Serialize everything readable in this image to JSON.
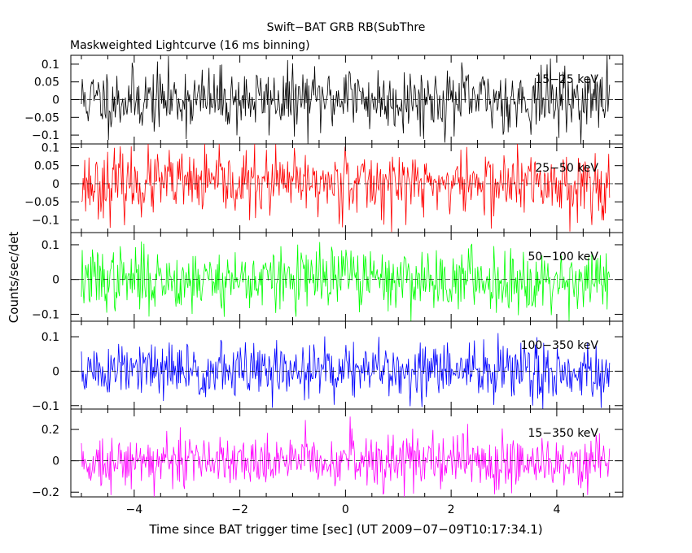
{
  "chart_data": {
    "type": "line",
    "title": "Swift−BAT GRB RB(SubThre",
    "subtitle": "Maskweighted Lightcurve (16 ms binning)",
    "xlabel": "Time since BAT trigger time [sec] (UT 2009−07−09T10:17:34.1)",
    "ylabel": "Counts/sec/det",
    "xlim": [
      -5.2,
      5.25
    ],
    "x_ticks": [
      -4,
      -2,
      0,
      2,
      4
    ],
    "x_tick_labels": [
      "−4",
      "−2",
      "0",
      "2",
      "4"
    ],
    "x_range": [
      -5.0,
      5.0
    ],
    "bin_size": 0.016,
    "panels": [
      {
        "name": "15−25 keV",
        "color": "#000000",
        "ylim": [
          -0.125,
          0.125
        ],
        "y_ticks": [
          -0.1,
          -0.05,
          0,
          0.05,
          0.1
        ],
        "y_tick_labels": [
          "−0.1",
          "−0.05",
          "0",
          "0.05",
          "0.1"
        ],
        "noise_sigma": 0.045,
        "seed": 11
      },
      {
        "name": "25−50 keV",
        "color": "#ff0000",
        "ylim": [
          -0.135,
          0.11
        ],
        "y_ticks": [
          -0.1,
          -0.05,
          0,
          0.05,
          0.1
        ],
        "y_tick_labels": [
          "−0.1",
          "−0.05",
          "0",
          "0.05",
          "0.1"
        ],
        "noise_sigma": 0.045,
        "seed": 23
      },
      {
        "name": "50−100 keV",
        "color": "#00ff00",
        "ylim": [
          -0.12,
          0.135
        ],
        "y_ticks": [
          -0.1,
          0,
          0.1
        ],
        "y_tick_labels": [
          "−0.1",
          "0",
          "0.1"
        ],
        "noise_sigma": 0.045,
        "seed": 37
      },
      {
        "name": "100−350 keV",
        "color": "#0000ff",
        "ylim": [
          -0.11,
          0.145
        ],
        "y_ticks": [
          -0.1,
          0,
          0.1
        ],
        "y_tick_labels": [
          "−0.1",
          "0",
          "0.1"
        ],
        "noise_sigma": 0.042,
        "seed": 51
      },
      {
        "name": "15−350 keV",
        "color": "#ff00ff",
        "ylim": [
          -0.23,
          0.33
        ],
        "y_ticks": [
          -0.2,
          0,
          0.2
        ],
        "y_tick_labels": [
          "−0.2",
          "0",
          "0.2"
        ],
        "noise_sigma": 0.085,
        "seed": 73
      }
    ],
    "zero_line": "dashed",
    "grid": false,
    "legend": "none"
  }
}
